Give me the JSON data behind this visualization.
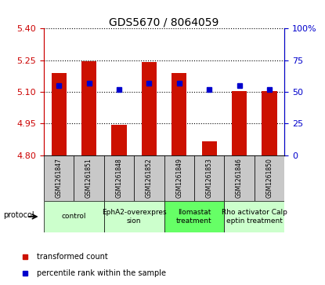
{
  "title": "GDS5670 / 8064059",
  "samples": [
    "GSM1261847",
    "GSM1261851",
    "GSM1261848",
    "GSM1261852",
    "GSM1261849",
    "GSM1261853",
    "GSM1261846",
    "GSM1261850"
  ],
  "transformed_counts": [
    5.19,
    5.245,
    4.945,
    5.24,
    5.19,
    4.865,
    5.105,
    5.105
  ],
  "percentile_ranks": [
    55,
    57,
    52,
    57,
    57,
    52,
    55,
    52
  ],
  "ylim": [
    4.8,
    5.4
  ],
  "y2lim": [
    0,
    100
  ],
  "yticks": [
    4.8,
    4.95,
    5.1,
    5.25,
    5.4
  ],
  "y2ticks": [
    0,
    25,
    50,
    75,
    100
  ],
  "y2tick_labels": [
    "0",
    "25",
    "50",
    "75",
    "100%"
  ],
  "bar_color": "#CC1100",
  "marker_color": "#0000CC",
  "protocols": [
    {
      "label": "control",
      "spans": [
        0,
        2
      ],
      "color": "#CCFFCC"
    },
    {
      "label": "EphA2-overexpres\nsion",
      "spans": [
        2,
        4
      ],
      "color": "#CCFFCC"
    },
    {
      "label": "Ilomastat\ntreatment",
      "spans": [
        4,
        6
      ],
      "color": "#66FF66"
    },
    {
      "label": "Rho activator Calp\neptin treatment",
      "spans": [
        6,
        8
      ],
      "color": "#CCFFCC"
    }
  ],
  "bar_width": 0.5,
  "ylabel_left_color": "#CC0000",
  "ylabel_right_color": "#0000CC",
  "title_fontsize": 10,
  "sample_fontsize": 5.5,
  "protocol_fontsize": 6.5,
  "protocol_label": "protocol",
  "legend_items": [
    {
      "label": "transformed count",
      "color": "#CC1100"
    },
    {
      "label": "percentile rank within the sample",
      "color": "#0000CC"
    }
  ],
  "sample_box_color": "#C8C8C8",
  "grid_color": "#000000",
  "grid_linestyle": "dotted"
}
